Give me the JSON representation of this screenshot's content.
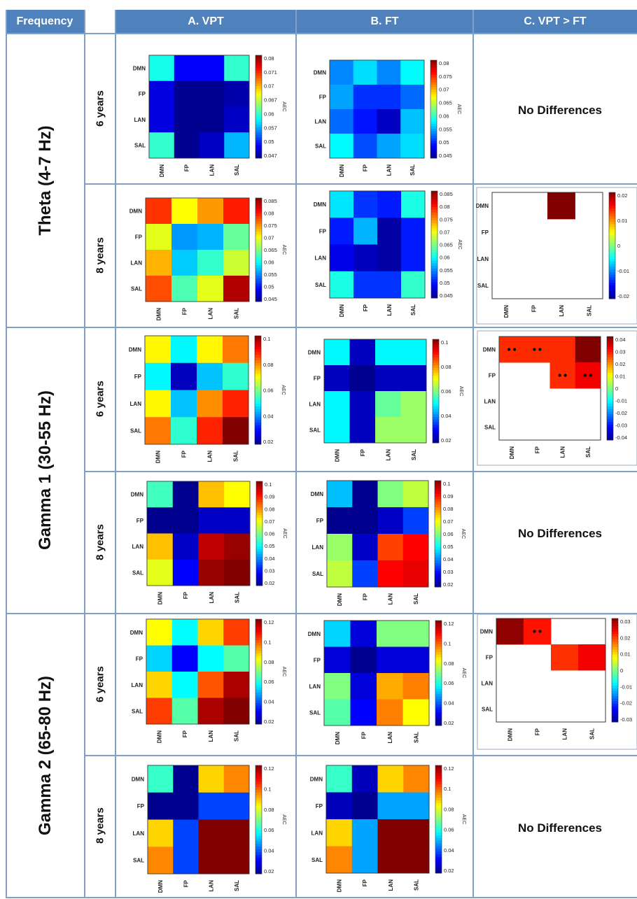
{
  "headers": {
    "frequency": "Frequency",
    "col_a": "A. VPT",
    "col_b": "B. FT",
    "col_c": "C. VPT > FT"
  },
  "no_differences": "No Differences",
  "colorbar_label": "AEC",
  "colormap": [
    "#00008f",
    "#0000ff",
    "#0080ff",
    "#00ffff",
    "#80ff80",
    "#ffff00",
    "#ff8000",
    "#ff0000",
    "#800000"
  ],
  "chart_data": [
    {
      "type": "heatmap",
      "frequency": "Theta (4-7 Hz)",
      "age": "6 years",
      "condition": "A. VPT",
      "rows": [
        "DMN",
        "FP",
        "LAN",
        "SAL"
      ],
      "cols": [
        "DMN",
        "FP",
        "LAN",
        "SAL"
      ],
      "values": [
        [
          0.06,
          0.051,
          0.051,
          0.061
        ],
        [
          0.05,
          0.047,
          0.047,
          0.048
        ],
        [
          0.05,
          0.047,
          0.047,
          0.049
        ],
        [
          0.061,
          0.047,
          0.049,
          0.057
        ]
      ],
      "colorbar": {
        "min": 0.047,
        "max": 0.08,
        "ticks": [
          "0.08",
          "0.071",
          "0.07",
          "0.067",
          "0.06",
          "0.057",
          "0.05",
          "0.047"
        ]
      }
    },
    {
      "type": "heatmap",
      "frequency": "Theta (4-7 Hz)",
      "age": "6 years",
      "condition": "B. FT",
      "rows": [
        "DMN",
        "FP",
        "LAN",
        "SAL"
      ],
      "cols": [
        "DMN",
        "FP",
        "LAN",
        "SAL"
      ],
      "values": [
        [
          0.054,
          0.057,
          0.054,
          0.058
        ],
        [
          0.055,
          0.051,
          0.051,
          0.053
        ],
        [
          0.053,
          0.05,
          0.047,
          0.056
        ],
        [
          0.058,
          0.052,
          0.055,
          0.057
        ]
      ],
      "colorbar": {
        "min": 0.045,
        "max": 0.08,
        "ticks": [
          "0.08",
          "0.075",
          "0.07",
          "0.065",
          "0.06",
          "0.055",
          "0.05",
          "0.045"
        ]
      }
    },
    {
      "type": "heatmap",
      "frequency": "Theta (4-7 Hz)",
      "age": "8 years",
      "condition": "A. VPT",
      "rows": [
        "DMN",
        "FP",
        "LAN",
        "SAL"
      ],
      "cols": [
        "DMN",
        "FP",
        "LAN",
        "SAL"
      ],
      "values": [
        [
          0.078,
          0.07,
          0.074,
          0.079
        ],
        [
          0.069,
          0.056,
          0.057,
          0.064
        ],
        [
          0.073,
          0.058,
          0.062,
          0.068
        ],
        [
          0.077,
          0.063,
          0.069,
          0.083
        ]
      ],
      "colorbar": {
        "min": 0.045,
        "max": 0.085,
        "ticks": [
          "0.085",
          "0.08",
          "0.075",
          "0.07",
          "0.065",
          "0.06",
          "0.055",
          "0.05",
          "0.045"
        ]
      }
    },
    {
      "type": "heatmap",
      "frequency": "Theta (4-7 Hz)",
      "age": "8 years",
      "condition": "B. FT",
      "rows": [
        "DMN",
        "FP",
        "LAN",
        "SAL"
      ],
      "cols": [
        "DMN",
        "FP",
        "LAN",
        "SAL"
      ],
      "values": [
        [
          0.059,
          0.052,
          0.051,
          0.061
        ],
        [
          0.051,
          0.057,
          0.046,
          0.051
        ],
        [
          0.049,
          0.047,
          0.046,
          0.051
        ],
        [
          0.061,
          0.052,
          0.052,
          0.062
        ]
      ],
      "colorbar": {
        "min": 0.045,
        "max": 0.085,
        "ticks": [
          "0.085",
          "0.08",
          "0.075",
          "0.07",
          "0.065",
          "0.06",
          "0.055",
          "0.05",
          "0.045"
        ]
      }
    },
    {
      "type": "heatmap",
      "frequency": "Theta (4-7 Hz)",
      "age": "8 years",
      "condition": "C. VPT > FT",
      "rows": [
        "DMN",
        "FP",
        "LAN",
        "SAL"
      ],
      "cols": [
        "DMN",
        "FP",
        "LAN",
        "SAL"
      ],
      "values": [
        [
          null,
          null,
          0.025,
          null
        ],
        [
          null,
          null,
          null,
          null
        ],
        [
          null,
          null,
          null,
          null
        ],
        [
          null,
          null,
          null,
          null
        ]
      ],
      "colorbar": {
        "min": -0.025,
        "max": 0.025,
        "ticks": [
          "0.02",
          "0.01",
          "0",
          "-0.01",
          "-0.02"
        ]
      }
    },
    {
      "type": "heatmap",
      "frequency": "Gamma 1 (30-55 Hz)",
      "age": "6 years",
      "condition": "A. VPT",
      "rows": [
        "DMN",
        "FP",
        "LAN",
        "SAL"
      ],
      "cols": [
        "DMN",
        "FP",
        "LAN",
        "SAL"
      ],
      "values": [
        [
          0.07,
          0.045,
          0.07,
          0.082
        ],
        [
          0.045,
          0.015,
          0.04,
          0.05
        ],
        [
          0.07,
          0.04,
          0.08,
          0.09
        ],
        [
          0.082,
          0.05,
          0.09,
          0.105
        ]
      ],
      "colorbar": {
        "min": 0.01,
        "max": 0.105,
        "ticks": [
          "0.1",
          "0.08",
          "0.06",
          "0.04",
          "0.02"
        ]
      }
    },
    {
      "type": "heatmap",
      "frequency": "Gamma 1 (30-55 Hz)",
      "age": "6 years",
      "condition": "B. FT",
      "rows": [
        "DMN",
        "FP",
        "LAN",
        "SAL"
      ],
      "cols": [
        "DMN",
        "FP",
        "LAN",
        "SAL"
      ],
      "values": [
        [
          0.045,
          0.015,
          0.045,
          0.045
        ],
        [
          0.015,
          0.01,
          0.015,
          0.015
        ],
        [
          0.045,
          0.015,
          0.055,
          0.06
        ],
        [
          0.045,
          0.015,
          0.06,
          0.06
        ]
      ],
      "colorbar": {
        "min": 0.01,
        "max": 0.105,
        "ticks": [
          "0.1",
          "0.08",
          "0.06",
          "0.04",
          "0.02"
        ]
      }
    },
    {
      "type": "heatmap",
      "frequency": "Gamma 1 (30-55 Hz)",
      "age": "6 years",
      "condition": "C. VPT > FT",
      "rows": [
        "DMN",
        "FP",
        "LAN",
        "SAL"
      ],
      "cols": [
        "DMN",
        "FP",
        "LAN",
        "SAL"
      ],
      "values": [
        [
          0.03,
          0.03,
          0.03,
          0.045
        ],
        [
          null,
          null,
          0.03,
          0.035
        ],
        [
          null,
          null,
          null,
          null
        ],
        [
          null,
          null,
          null,
          null
        ]
      ],
      "significant": [
        [
          0,
          0
        ],
        [
          0,
          1
        ],
        [
          1,
          2
        ],
        [
          1,
          3
        ]
      ],
      "colorbar": {
        "min": -0.045,
        "max": 0.045,
        "ticks": [
          "0.04",
          "0.03",
          "0.02",
          "0.01",
          "0",
          "-0.01",
          "-0.02",
          "-0.03",
          "-0.04"
        ]
      }
    },
    {
      "type": "heatmap",
      "frequency": "Gamma 1 (30-55 Hz)",
      "age": "8 years",
      "condition": "A. VPT",
      "rows": [
        "DMN",
        "FP",
        "LAN",
        "SAL"
      ],
      "cols": [
        "DMN",
        "FP",
        "LAN",
        "SAL"
      ],
      "values": [
        [
          0.055,
          0.02,
          0.075,
          0.07
        ],
        [
          0.02,
          0.015,
          0.025,
          0.025
        ],
        [
          0.075,
          0.025,
          0.095,
          0.098
        ],
        [
          0.068,
          0.03,
          0.098,
          0.1
        ]
      ],
      "colorbar": {
        "min": 0.02,
        "max": 0.1,
        "ticks": [
          "0.1",
          "0.09",
          "0.08",
          "0.07",
          "0.06",
          "0.05",
          "0.04",
          "0.03",
          "0.02"
        ]
      }
    },
    {
      "type": "heatmap",
      "frequency": "Gamma 1 (30-55 Hz)",
      "age": "8 years",
      "condition": "B. FT",
      "rows": [
        "DMN",
        "FP",
        "LAN",
        "SAL"
      ],
      "cols": [
        "DMN",
        "FP",
        "LAN",
        "SAL"
      ],
      "values": [
        [
          0.045,
          0.02,
          0.06,
          0.065
        ],
        [
          0.02,
          0.015,
          0.025,
          0.035
        ],
        [
          0.062,
          0.025,
          0.085,
          0.09
        ],
        [
          0.065,
          0.035,
          0.09,
          0.092
        ]
      ],
      "colorbar": {
        "min": 0.02,
        "max": 0.1,
        "ticks": [
          "0.1",
          "0.09",
          "0.08",
          "0.07",
          "0.06",
          "0.05",
          "0.04",
          "0.03",
          "0.02"
        ]
      }
    },
    {
      "type": "heatmap",
      "frequency": "Gamma 2 (65-80 Hz)",
      "age": "6 years",
      "condition": "A. VPT",
      "rows": [
        "DMN",
        "FP",
        "LAN",
        "SAL"
      ],
      "cols": [
        "DMN",
        "FP",
        "LAN",
        "SAL"
      ],
      "values": [
        [
          0.085,
          0.055,
          0.09,
          0.108
        ],
        [
          0.05,
          0.025,
          0.055,
          0.065
        ],
        [
          0.09,
          0.055,
          0.105,
          0.125
        ],
        [
          0.108,
          0.065,
          0.125,
          0.13
        ]
      ],
      "colorbar": {
        "min": 0.01,
        "max": 0.13,
        "ticks": [
          "0.12",
          "0.1",
          "0.08",
          "0.06",
          "0.04",
          "0.02"
        ]
      }
    },
    {
      "type": "heatmap",
      "frequency": "Gamma 2 (65-80 Hz)",
      "age": "6 years",
      "condition": "B. FT",
      "rows": [
        "DMN",
        "FP",
        "LAN",
        "SAL"
      ],
      "cols": [
        "DMN",
        "FP",
        "LAN",
        "SAL"
      ],
      "values": [
        [
          0.05,
          0.02,
          0.07,
          0.07
        ],
        [
          0.02,
          0.01,
          0.02,
          0.02
        ],
        [
          0.07,
          0.02,
          0.095,
          0.1
        ],
        [
          0.065,
          0.025,
          0.1,
          0.085
        ]
      ],
      "colorbar": {
        "min": 0.01,
        "max": 0.13,
        "ticks": [
          "0.12",
          "0.1",
          "0.08",
          "0.06",
          "0.04",
          "0.02"
        ]
      }
    },
    {
      "type": "heatmap",
      "frequency": "Gamma 2 (65-80 Hz)",
      "age": "6 years",
      "condition": "C. VPT > FT",
      "rows": [
        "DMN",
        "FP",
        "LAN",
        "SAL"
      ],
      "cols": [
        "DMN",
        "FP",
        "LAN",
        "SAL"
      ],
      "values": [
        [
          0.034,
          0.025,
          null,
          null
        ],
        [
          null,
          null,
          0.023,
          0.027
        ],
        [
          null,
          null,
          null,
          null
        ],
        [
          null,
          null,
          null,
          null
        ]
      ],
      "significant": [
        [
          0,
          1
        ]
      ],
      "colorbar": {
        "min": -0.035,
        "max": 0.035,
        "ticks": [
          "0.03",
          "0.02",
          "0.01",
          "0",
          "-0.01",
          "-0.02",
          "-0.03"
        ]
      }
    },
    {
      "type": "heatmap",
      "frequency": "Gamma 2 (65-80 Hz)",
      "age": "8 years",
      "condition": "A. VPT",
      "rows": [
        "DMN",
        "FP",
        "LAN",
        "SAL"
      ],
      "cols": [
        "DMN",
        "FP",
        "LAN",
        "SAL"
      ],
      "values": [
        [
          0.065,
          0.02,
          0.09,
          0.098
        ],
        [
          0.02,
          0.015,
          0.04,
          0.04
        ],
        [
          0.09,
          0.04,
          0.125,
          0.125
        ],
        [
          0.098,
          0.04,
          0.125,
          0.125
        ]
      ],
      "colorbar": {
        "min": 0.02,
        "max": 0.125,
        "ticks": [
          "0.12",
          "0.1",
          "0.08",
          "0.06",
          "0.04",
          "0.02"
        ]
      }
    },
    {
      "type": "heatmap",
      "frequency": "Gamma 2 (65-80 Hz)",
      "age": "8 years",
      "condition": "B. FT",
      "rows": [
        "DMN",
        "FP",
        "LAN",
        "SAL"
      ],
      "cols": [
        "DMN",
        "FP",
        "LAN",
        "SAL"
      ],
      "values": [
        [
          0.065,
          0.025,
          0.09,
          0.098
        ],
        [
          0.025,
          0.015,
          0.05,
          0.05
        ],
        [
          0.09,
          0.05,
          0.125,
          0.125
        ],
        [
          0.098,
          0.05,
          0.125,
          0.125
        ]
      ],
      "colorbar": {
        "min": 0.02,
        "max": 0.125,
        "ticks": [
          "0.12",
          "0.1",
          "0.08",
          "0.06",
          "0.04",
          "0.02"
        ]
      }
    }
  ],
  "row_groups": [
    {
      "frequency": "Theta (4-7 Hz)",
      "ages": [
        "6 years",
        "8 years"
      ]
    },
    {
      "frequency": "Gamma 1 (30-55 Hz)",
      "ages": [
        "6 years",
        "8 years"
      ]
    },
    {
      "frequency": "Gamma 2 (65-80 Hz)",
      "ages": [
        "6 years",
        "8 years"
      ]
    }
  ]
}
